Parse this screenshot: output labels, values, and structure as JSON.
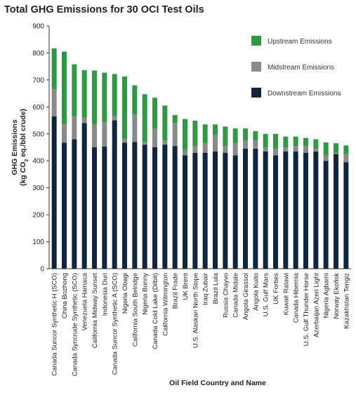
{
  "chart_data": {
    "type": "bar",
    "stacked": true,
    "title": "Total GHG Emissions for 30 OCI Test Oils",
    "xlabel": "Oil Field Country and Name",
    "ylabel_parts": [
      "GHG Emissions",
      "(kg CO",
      "2",
      " eq./bbl crude)"
    ],
    "ylim": [
      0,
      900
    ],
    "yticks": [
      0,
      100,
      200,
      300,
      400,
      500,
      600,
      700,
      800,
      900
    ],
    "grid": false,
    "legend_position": "top-right",
    "categories": [
      "Canada Suncor Synthetic H (SCO)",
      "China Bozhong",
      "Canada Syncrude Synthetic (SCO)",
      "Venezuela Hamaca",
      "California Midway Sunset",
      "Indonesia Duri",
      "Canada Suncor Synthetic A (SCO)",
      "Nigeria Obagi",
      "California South Belridge",
      "Nigeria Bonny",
      "Canada Cold Lake (Dilbit)",
      "California Wilmington",
      "Brazil Frade",
      "UK Brent",
      "U.S. Alaskan North Slope",
      "Iraq Zubair",
      "Brazil Lula",
      "Russia Chayvo",
      "Canada Midale",
      "Angola Girassol",
      "Angola Kuito",
      "U.S. Gulf Mars",
      "UK Forties",
      "Kuwait Ratawi",
      "Canada Hibernia",
      "U.S. Gulf Thunder Horse",
      "Azerbaijan Azeri Light",
      "Nigeria Agbami",
      "Norway Ekofisk",
      "Kazakhstan Tengiz"
    ],
    "series": [
      {
        "name": "Downstream Emissions",
        "color": "#0f2540",
        "values": [
          565,
          467,
          480,
          540,
          450,
          453,
          550,
          467,
          470,
          460,
          450,
          460,
          455,
          420,
          430,
          430,
          435,
          430,
          420,
          445,
          445,
          435,
          420,
          435,
          435,
          430,
          435,
          400,
          425,
          395
        ]
      },
      {
        "name": "Midstream Emissions",
        "color": "#8a8a8a",
        "values": [
          100,
          70,
          85,
          20,
          85,
          92,
          15,
          15,
          102,
          10,
          70,
          15,
          85,
          20,
          25,
          35,
          60,
          25,
          45,
          30,
          30,
          15,
          25,
          15,
          20,
          25,
          10,
          20,
          5,
          30
        ]
      },
      {
        "name": "Upstream Emissions",
        "color": "#2e9a44",
        "values": [
          152,
          268,
          193,
          176,
          200,
          182,
          157,
          231,
          108,
          177,
          114,
          130,
          30,
          115,
          94,
          70,
          40,
          72,
          55,
          45,
          35,
          50,
          55,
          40,
          35,
          30,
          35,
          48,
          35,
          32
        ]
      }
    ],
    "legend_order": [
      "Upstream Emissions",
      "Midstream Emissions",
      "Downstream Emissions"
    ]
  }
}
